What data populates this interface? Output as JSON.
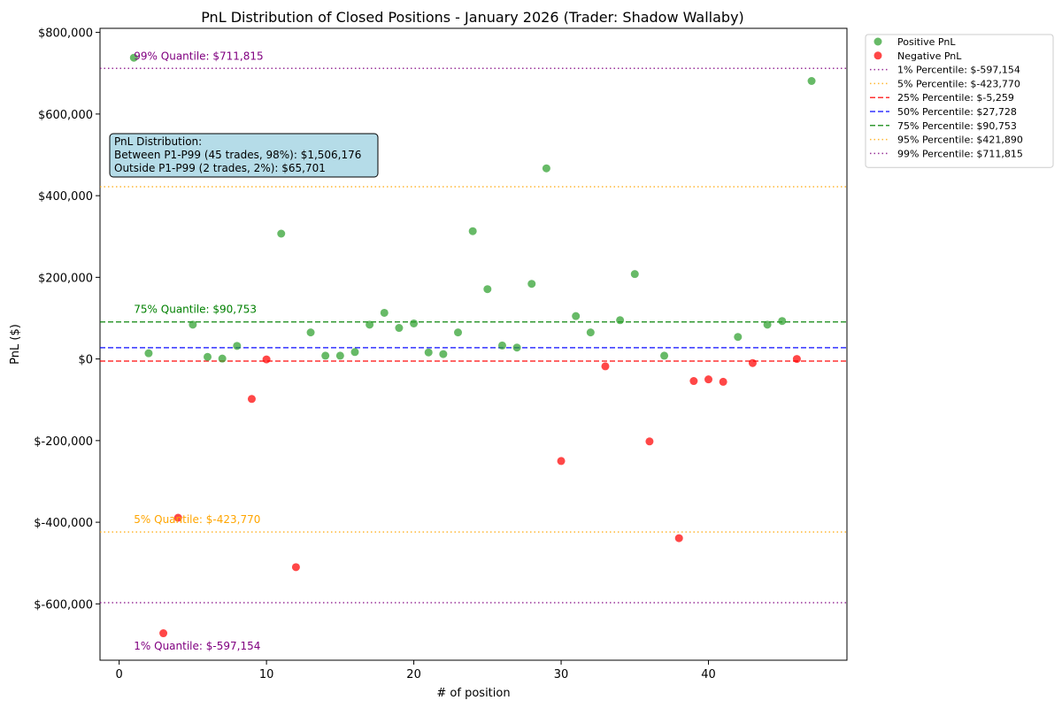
{
  "chart_data": {
    "type": "scatter",
    "title": "PnL Distribution of Closed Positions - January 2026 (Trader: Shadow Wallaby)",
    "xlabel": "# of position",
    "ylabel": "PnL ($)",
    "xlim": [
      -1.3,
      49.4
    ],
    "ylim": [
      -738000,
      810000
    ],
    "x_ticks": [
      0,
      10,
      20,
      30,
      40
    ],
    "y_ticks": [
      {
        "value": 800000,
        "label": "$800,000"
      },
      {
        "value": 600000,
        "label": "$600,000"
      },
      {
        "value": 400000,
        "label": "$400,000"
      },
      {
        "value": 200000,
        "label": "$200,000"
      },
      {
        "value": 0,
        "label": "$0"
      },
      {
        "value": -200000,
        "label": "$-200,000"
      },
      {
        "value": -400000,
        "label": "$-400,000"
      },
      {
        "value": -600000,
        "label": "$-600,000"
      }
    ],
    "grid": false,
    "legend_placement": "outside top-right",
    "series": [
      {
        "name": "Positive PnL",
        "color": "#2ca02c",
        "points": [
          [
            1,
            738000
          ],
          [
            2,
            14000
          ],
          [
            5,
            84000
          ],
          [
            6,
            5000
          ],
          [
            7,
            1000
          ],
          [
            8,
            32000
          ],
          [
            11,
            307000
          ],
          [
            13,
            65000
          ],
          [
            14,
            8000
          ],
          [
            15,
            8000
          ],
          [
            16,
            17000
          ],
          [
            17,
            84000
          ],
          [
            18,
            113000
          ],
          [
            19,
            76000
          ],
          [
            20,
            87000
          ],
          [
            21,
            16000
          ],
          [
            22,
            12000
          ],
          [
            23,
            65000
          ],
          [
            24,
            313000
          ],
          [
            25,
            171000
          ],
          [
            26,
            33000
          ],
          [
            27,
            28000
          ],
          [
            28,
            184000
          ],
          [
            29,
            467000
          ],
          [
            31,
            105000
          ],
          [
            32,
            65000
          ],
          [
            34,
            95000
          ],
          [
            35,
            208000
          ],
          [
            37,
            8000
          ],
          [
            42,
            54000
          ],
          [
            44,
            84000
          ],
          [
            45,
            93000
          ],
          [
            47,
            681000
          ]
        ]
      },
      {
        "name": "Negative PnL",
        "color": "#ff0000",
        "points": [
          [
            3,
            -672000
          ],
          [
            4,
            -389000
          ],
          [
            9,
            -98000
          ],
          [
            10,
            -1000
          ],
          [
            12,
            -510000
          ],
          [
            30,
            -250000
          ],
          [
            33,
            -18000
          ],
          [
            36,
            -202000
          ],
          [
            38,
            -439000
          ],
          [
            39,
            -54000
          ],
          [
            40,
            -50000
          ],
          [
            41,
            -56000
          ],
          [
            43,
            -10000
          ],
          [
            46,
            0
          ]
        ]
      }
    ],
    "reference_lines": [
      {
        "label": "1% Percentile: $-597,154",
        "value": -597154,
        "color": "#800080",
        "style": "dotted"
      },
      {
        "label": "5% Percentile: $-423,770",
        "value": -423770,
        "color": "#ffa500",
        "style": "dotted"
      },
      {
        "label": "25% Percentile: $-5,259",
        "value": -5259,
        "color": "#ff0000",
        "style": "dashed"
      },
      {
        "label": "50% Percentile: $27,728",
        "value": 27728,
        "color": "#0000ff",
        "style": "dashed"
      },
      {
        "label": "75% Percentile: $90,753",
        "value": 90753,
        "color": "#008000",
        "style": "dashed"
      },
      {
        "label": "95% Percentile: $421,890",
        "value": 421890,
        "color": "#ffa500",
        "style": "dotted"
      },
      {
        "label": "99% Percentile: $711,815",
        "value": 711815,
        "color": "#800080",
        "style": "dotted"
      }
    ],
    "annotations": [
      {
        "text": "99% Quantile: $711,815",
        "x": 1,
        "y": 711815,
        "color": "#800080"
      },
      {
        "text": "75% Quantile: $90,753",
        "x": 1,
        "y": 90753,
        "color": "#008000"
      },
      {
        "text": "5% Quantile: $-423,770",
        "x": 1,
        "y": -423770,
        "color": "#ffa500"
      },
      {
        "text": "1% Quantile: $-597,154",
        "x": 1,
        "y": -597154,
        "color": "#800080",
        "position": "below-axis-bottom"
      }
    ],
    "info_box": {
      "lines": [
        "PnL Distribution:",
        "Between P1-P99 (45 trades, 98%): $1,506,176",
        "Outside P1-P99 (2 trades, 2%): $65,701"
      ],
      "background": "#add8e6"
    }
  }
}
